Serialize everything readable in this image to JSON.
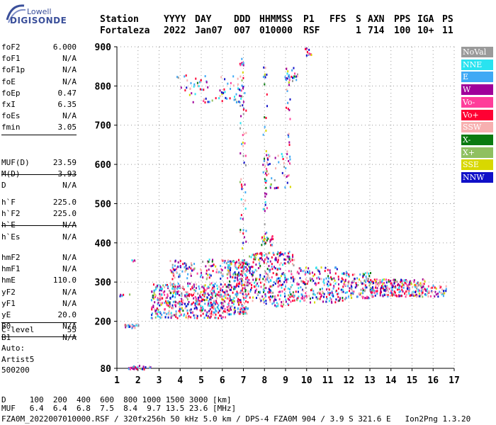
{
  "logo": {
    "top": "Lowell",
    "main": "DIGISONDE"
  },
  "header": {
    "row1": [
      {
        "k": "station_label",
        "t": "Station"
      },
      {
        "k": "yyyy_label",
        "t": "YYYY"
      },
      {
        "k": "day_label",
        "t": "DAY"
      },
      {
        "k": "ddd_label",
        "t": "DDD"
      },
      {
        "k": "hhmmss_label",
        "t": "HHMMSS"
      },
      {
        "k": "p1_label",
        "t": "P1"
      },
      {
        "k": "ffs_label",
        "t": "FFS"
      },
      {
        "k": "s_label",
        "t": "S"
      },
      {
        "k": "axn_label",
        "t": "AXN"
      },
      {
        "k": "pps_label",
        "t": "PPS"
      },
      {
        "k": "iga_label",
        "t": "IGA"
      },
      {
        "k": "ps_label",
        "t": "PS"
      }
    ],
    "row2": [
      {
        "k": "station",
        "t": "Fortaleza"
      },
      {
        "k": "yyyy",
        "t": "2022"
      },
      {
        "k": "day",
        "t": "Jan07"
      },
      {
        "k": "ddd",
        "t": "007"
      },
      {
        "k": "hhmmss",
        "t": "010000"
      },
      {
        "k": "p1",
        "t": "RSF"
      },
      {
        "k": "s",
        "t": "1"
      },
      {
        "k": "axn",
        "t": "714"
      },
      {
        "k": "pps",
        "t": "100"
      },
      {
        "k": "iga",
        "t": "10+"
      },
      {
        "k": "ps",
        "t": "11"
      }
    ]
  },
  "params": {
    "group1": [
      {
        "k": "foF2",
        "v": "6.000"
      },
      {
        "k": "foF1",
        "v": "N/A"
      },
      {
        "k": "foF1p",
        "v": "N/A"
      },
      {
        "k": "foE",
        "v": "N/A"
      },
      {
        "k": "foEp",
        "v": "0.47"
      },
      {
        "k": "fxI",
        "v": "6.35"
      },
      {
        "k": "foEs",
        "v": "N/A"
      },
      {
        "k": "fmin",
        "v": "3.05"
      }
    ],
    "group2": [
      {
        "k": "MUF(D)",
        "v": "23.59"
      },
      {
        "k": "M(D)",
        "v": "3.93"
      },
      {
        "k": "D",
        "v": "N/A"
      }
    ],
    "group3": [
      {
        "k": "h`F",
        "v": "225.0"
      },
      {
        "k": "h`F2",
        "v": "225.0"
      },
      {
        "k": "h`E",
        "v": "N/A"
      },
      {
        "k": "h`Es",
        "v": "N/A"
      }
    ],
    "group4": [
      {
        "k": "hmF2",
        "v": "N/A"
      },
      {
        "k": "hmF1",
        "v": "N/A"
      },
      {
        "k": "hmE",
        "v": "110.0"
      },
      {
        "k": "yF2",
        "v": "N/A"
      },
      {
        "k": "yF1",
        "v": "N/A"
      },
      {
        "k": "yE",
        "v": "20.0"
      },
      {
        "k": "B0",
        "v": "N/A"
      },
      {
        "k": "B1",
        "v": "N/A"
      }
    ],
    "group5": [
      {
        "k": "C-level",
        "v": "55"
      }
    ]
  },
  "auto": {
    "label": "Auto:",
    "artist": "Artist5",
    "version": "500200"
  },
  "legend": [
    {
      "name": "NoVal",
      "color": "#9a9a9a"
    },
    {
      "name": "NNE",
      "color": "#29e3f0"
    },
    {
      "name": "E",
      "color": "#3fa9f5"
    },
    {
      "name": "W",
      "color": "#a0009a"
    },
    {
      "name": "Vo-",
      "color": "#ff3d9a"
    },
    {
      "name": "Vo+",
      "color": "#ff0033"
    },
    {
      "name": "SSW",
      "color": "#f7b0b0"
    },
    {
      "name": "X-",
      "color": "#0a7a10"
    },
    {
      "name": "X+",
      "color": "#8fc060"
    },
    {
      "name": "SSE",
      "color": "#d8d800"
    },
    {
      "name": "NNW",
      "color": "#1010c8"
    }
  ],
  "bottom": {
    "d_row": "D     100  200  400  600  800 1000 1500 3000 [km]",
    "muf_row": "MUF   6.4  6.4  6.8  7.5  8.4  9.7 13.5 23.6 [MHz]",
    "info_row": "FZA0M_2022007010000.RSF / 320fx256h 50 kHz 5.0 km / DPS-4 FZA0M 904 / 3.9 S 321.6 E   Ion2Png 1.3.20"
  },
  "chart_data": {
    "type": "scatter",
    "title": "",
    "xlabel": "",
    "ylabel": "",
    "xlim": [
      1,
      17
    ],
    "ylim": [
      80,
      900
    ],
    "xticks": [
      1,
      2,
      3,
      4,
      5,
      6,
      7,
      8,
      9,
      10,
      11,
      12,
      13,
      14,
      15,
      16,
      17
    ],
    "yticks": [
      80,
      200,
      300,
      400,
      500,
      600,
      700,
      800,
      900
    ],
    "grid": true,
    "legend_position": "right",
    "trace_segments": [
      {
        "x_range": [
          2.6,
          6.2
        ],
        "y_range": [
          210,
          300
        ],
        "count": 520
      },
      {
        "x_range": [
          6.2,
          7.2
        ],
        "y_range": [
          220,
          360
        ],
        "count": 260
      },
      {
        "x_range": [
          7.2,
          9.4
        ],
        "y_range": [
          240,
          380
        ],
        "count": 320
      },
      {
        "x_range": [
          9.4,
          11.8
        ],
        "y_range": [
          250,
          340
        ],
        "count": 200
      },
      {
        "x_range": [
          11.8,
          13.0
        ],
        "y_range": [
          260,
          330
        ],
        "count": 110
      },
      {
        "x_range": [
          13.0,
          15.6
        ],
        "y_range": [
          265,
          310
        ],
        "count": 260
      },
      {
        "x_range": [
          15.6,
          16.6
        ],
        "y_range": [
          265,
          295
        ],
        "count": 40
      },
      {
        "x_range": [
          3.5,
          6.4
        ],
        "y_range": [
          310,
          360
        ],
        "count": 120
      },
      {
        "x_range": [
          6.8,
          7.1
        ],
        "y_range": [
          380,
          880
        ],
        "count": 60
      },
      {
        "x_range": [
          7.9,
          8.1
        ],
        "y_range": [
          400,
          860
        ],
        "count": 40
      },
      {
        "x_range": [
          9.0,
          9.2
        ],
        "y_range": [
          500,
          830
        ],
        "count": 30
      },
      {
        "x_range": [
          8.0,
          9.0
        ],
        "y_range": [
          540,
          630
        ],
        "count": 40
      },
      {
        "x_range": [
          3.8,
          7.0
        ],
        "y_range": [
          760,
          830
        ],
        "count": 80
      },
      {
        "x_range": [
          8.9,
          9.6
        ],
        "y_range": [
          815,
          850
        ],
        "count": 25
      },
      {
        "x_range": [
          9.9,
          10.2
        ],
        "y_range": [
          870,
          900
        ],
        "count": 12
      },
      {
        "x_range": [
          7.8,
          8.4
        ],
        "y_range": [
          395,
          420
        ],
        "count": 25
      },
      {
        "x_range": [
          1.3,
          2.0
        ],
        "y_range": [
          185,
          195
        ],
        "count": 25
      },
      {
        "x_range": [
          1.5,
          2.6
        ],
        "y_range": [
          80,
          90
        ],
        "count": 30
      },
      {
        "x_range": [
          1.1,
          1.6
        ],
        "y_range": [
          265,
          272
        ],
        "count": 6
      },
      {
        "x_range": [
          1.6,
          1.9
        ],
        "y_range": [
          355,
          360
        ],
        "count": 4
      }
    ]
  }
}
